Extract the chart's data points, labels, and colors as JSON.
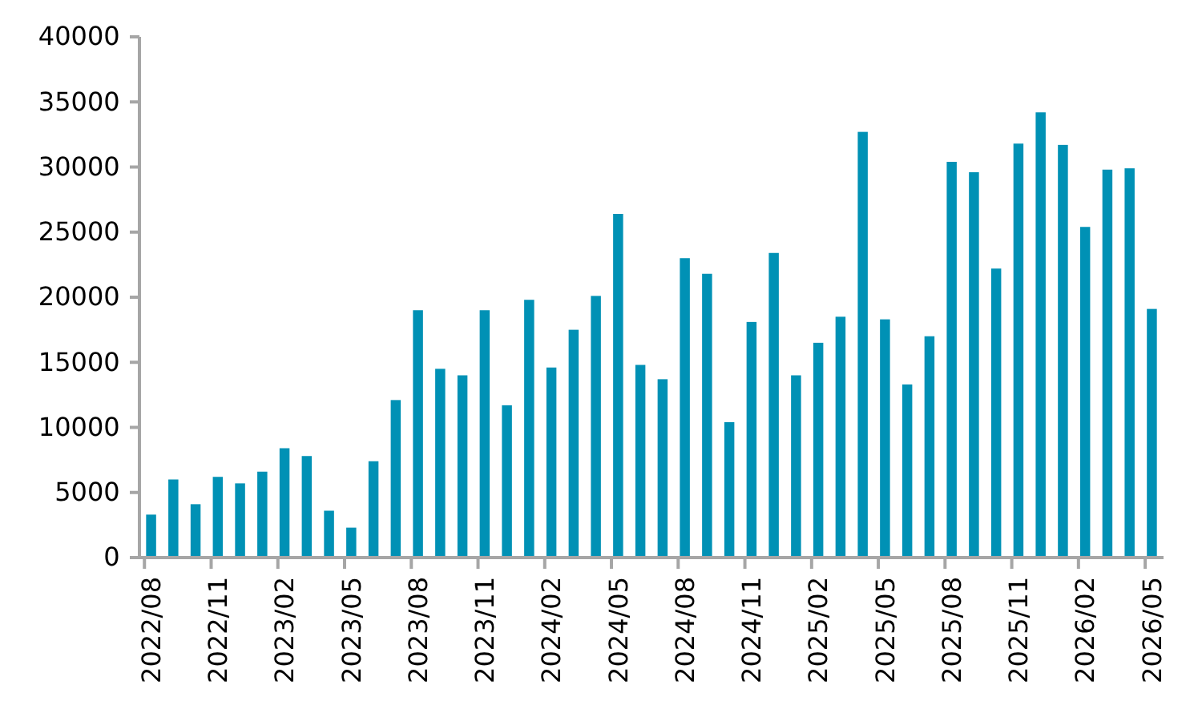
{
  "chart_data": {
    "type": "bar",
    "categories": [
      "2022/08",
      null,
      null,
      "2022/11",
      null,
      null,
      "2023/02",
      null,
      null,
      "2023/05",
      null,
      null,
      "2023/08",
      null,
      null,
      "2023/11",
      null,
      null,
      "2024/02",
      null,
      null,
      "2024/05",
      null,
      null,
      "2024/08",
      null,
      null,
      "2024/11",
      null,
      null,
      "2025/02",
      null,
      null,
      "2025/05",
      null,
      null,
      "2025/08",
      null,
      null,
      "2025/11",
      null,
      null,
      "2026/02",
      null,
      null,
      "2026/05"
    ],
    "values": [
      3300,
      6000,
      4100,
      6200,
      5700,
      6600,
      8400,
      7800,
      3600,
      2300,
      7400,
      12100,
      19000,
      14500,
      14000,
      19000,
      11700,
      19800,
      14600,
      17500,
      20100,
      26400,
      14800,
      13700,
      23000,
      21800,
      10400,
      18100,
      23400,
      14000,
      16500,
      18500,
      32700,
      18300,
      13300,
      17000,
      30400,
      29600,
      22200,
      31800,
      34200,
      31700,
      25400,
      29800,
      29900,
      19100
    ],
    "color": "#0091b5",
    "ylim": [
      0,
      40000
    ],
    "yticks": [
      0,
      5000,
      10000,
      15000,
      20000,
      25000,
      30000,
      35000,
      40000
    ],
    "grid": false
  }
}
